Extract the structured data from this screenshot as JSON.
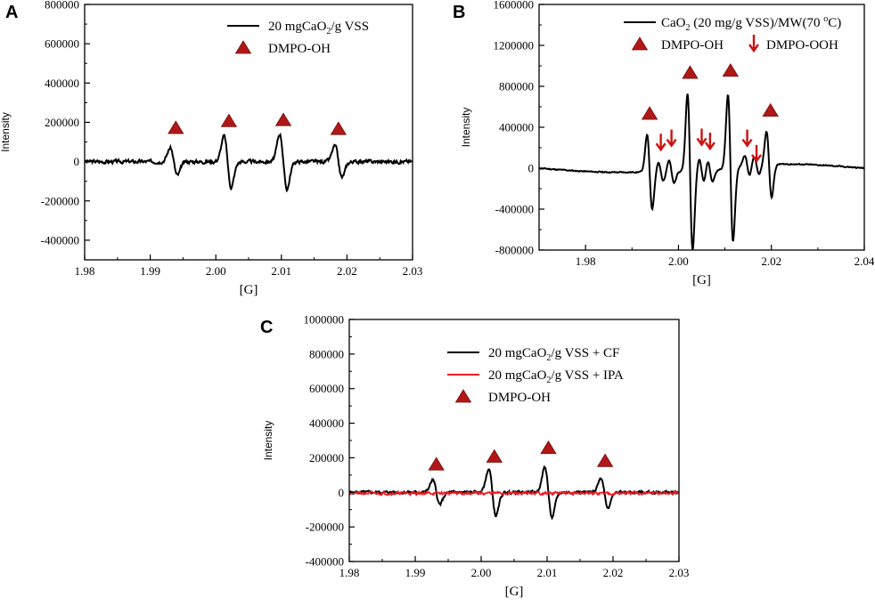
{
  "colors": {
    "line_black": "#000000",
    "line_red": "#ee1c24",
    "marker": "#b01818",
    "arrow": "#cc1111"
  },
  "chart_data": [
    {
      "type": "line",
      "panel": "A",
      "xlabel": "[G]",
      "ylabel": "Intensity",
      "xlim": [
        1.98,
        2.03
      ],
      "ylim": [
        -500000,
        800000
      ],
      "x_ticks": [
        1.98,
        1.99,
        2.0,
        2.01,
        2.02,
        2.03
      ],
      "x_tick_labels": [
        "1.98",
        "1.99",
        "2.00",
        "2.01",
        "2.02",
        "2.03"
      ],
      "y_ticks": [
        -400000,
        -200000,
        0,
        200000,
        400000,
        600000,
        800000
      ],
      "y_tick_labels": [
        "-400000",
        "-200000",
        "0",
        "200000",
        "400000",
        "600000",
        "800000"
      ],
      "legend": [
        {
          "kind": "line",
          "color": "#000000",
          "label": "20 mgCaO",
          "sub": "2",
          "label_rest": "/g VSS"
        },
        {
          "kind": "triangle",
          "label": "DMPO-OH"
        }
      ],
      "series": [
        {
          "name": "20 mgCaO2/g VSS",
          "color": "#000000",
          "baseline": 0,
          "noise": 10000,
          "peaks": [
            {
              "x": 1.9936,
              "amp": 70000
            },
            {
              "x": 2.0018,
              "amp": 130000
            },
            {
              "x": 2.0103,
              "amp": 140000
            },
            {
              "x": 2.0187,
              "amp": 80000
            }
          ],
          "width": 0.00055,
          "seed": 3
        }
      ],
      "triangles": [
        [
          1.9939,
          170000
        ],
        [
          2.002,
          205000
        ],
        [
          2.0103,
          210000
        ],
        [
          2.0187,
          165000
        ]
      ],
      "arrows": []
    },
    {
      "type": "line",
      "panel": "B",
      "xlabel": "[G]",
      "ylabel": "Intensity",
      "xlim": [
        1.97,
        2.04
      ],
      "ylim": [
        -800000,
        1600000
      ],
      "x_ticks": [
        1.98,
        2.0,
        2.02,
        2.04
      ],
      "x_tick_labels": [
        "1.98",
        "2.00",
        "2.02",
        "2.04"
      ],
      "y_ticks": [
        -800000,
        -400000,
        0,
        400000,
        800000,
        1200000,
        1600000
      ],
      "y_tick_labels": [
        "-800000",
        "-400000",
        "0",
        "400000",
        "800000",
        "1200000",
        "1600000"
      ],
      "legend": [
        {
          "kind": "line",
          "color": "#000000",
          "label": "CaO",
          "sub": "2",
          "label_rest": " (20 mg/g VSS)/MW(70 ",
          "sup": "o",
          "label_end": "C)"
        },
        {
          "kind": "triangle",
          "label": "DMPO-OH"
        },
        {
          "kind": "arrow",
          "label": "DMPO-OOH"
        }
      ],
      "series": [
        {
          "name": "CaO2 (20 mg/g VSS)/MW(70 oC)",
          "color": "#000000",
          "baseline": 0,
          "noise": 6000,
          "peaks": [
            {
              "x": 1.9938,
              "amp": 360000
            },
            {
              "x": 1.9962,
              "amp": 90000
            },
            {
              "x": 1.9985,
              "amp": 110000
            },
            {
              "x": 2.0025,
              "amp": 760000
            },
            {
              "x": 2.005,
              "amp": 120000
            },
            {
              "x": 2.0068,
              "amp": 110000
            },
            {
              "x": 2.0112,
              "amp": 720000
            },
            {
              "x": 2.0148,
              "amp": 100000
            },
            {
              "x": 2.0168,
              "amp": 90000
            },
            {
              "x": 2.0195,
              "amp": 320000
            }
          ],
          "width": 0.00055,
          "seed": 11,
          "drift": true
        }
      ],
      "triangles": [
        [
          1.9938,
          530000
        ],
        [
          2.0025,
          930000
        ],
        [
          2.0112,
          950000
        ],
        [
          2.0198,
          560000
        ]
      ],
      "arrows": [
        [
          1.9962,
          250000
        ],
        [
          1.9985,
          290000
        ],
        [
          2.005,
          300000
        ],
        [
          2.0068,
          260000
        ],
        [
          2.0148,
          290000
        ],
        [
          2.0168,
          140000
        ]
      ]
    },
    {
      "type": "line",
      "panel": "C",
      "xlabel": "[G]",
      "ylabel": "Intensity",
      "xlim": [
        1.98,
        2.03
      ],
      "ylim": [
        -400000,
        1000000
      ],
      "x_ticks": [
        1.98,
        1.99,
        2.0,
        2.01,
        2.02,
        2.03
      ],
      "x_tick_labels": [
        "1.98",
        "1.99",
        "2.00",
        "2.01",
        "2.02",
        "2.03"
      ],
      "y_ticks": [
        -400000,
        -200000,
        0,
        200000,
        400000,
        600000,
        800000,
        1000000
      ],
      "y_tick_labels": [
        "-400000",
        "-200000",
        "0",
        "200000",
        "400000",
        "600000",
        "800000",
        "1000000"
      ],
      "legend": [
        {
          "kind": "line",
          "color": "#000000",
          "label": "20 mgCaO",
          "sub": "2",
          "label_rest": "/g VSS + CF"
        },
        {
          "kind": "line",
          "color": "#ee1c24",
          "label": "20 mgCaO",
          "sub": "2",
          "label_rest": "/g VSS + IPA"
        },
        {
          "kind": "triangle",
          "label": "DMPO-OH"
        }
      ],
      "series": [
        {
          "name": "20 mgCaO2/g VSS + CF",
          "color": "#000000",
          "baseline": 0,
          "noise": 9000,
          "peaks": [
            {
              "x": 1.9932,
              "amp": 70000
            },
            {
              "x": 2.0017,
              "amp": 135000
            },
            {
              "x": 2.0102,
              "amp": 145000
            },
            {
              "x": 2.0187,
              "amp": 85000
            }
          ],
          "width": 0.00055,
          "seed": 5
        },
        {
          "name": "20 mgCaO2/g VSS + IPA",
          "color": "#ee1c24",
          "baseline": -5000,
          "noise": 9000,
          "peaks": [],
          "width": 0.00055,
          "seed": 21
        }
      ],
      "triangles": [
        [
          1.9932,
          160000
        ],
        [
          2.002,
          205000
        ],
        [
          2.0102,
          255000
        ],
        [
          2.0188,
          180000
        ]
      ],
      "arrows": []
    }
  ]
}
